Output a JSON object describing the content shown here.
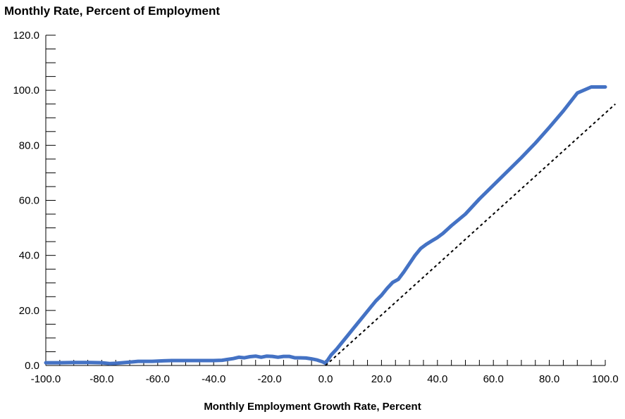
{
  "chart_data": {
    "type": "line",
    "title": "Monthly Rate, Percent of Employment",
    "xlabel": "Monthly Employment Growth Rate, Percent",
    "ylabel": "",
    "xlim": [
      -100,
      100
    ],
    "ylim": [
      0,
      120
    ],
    "x_ticks": [
      "-100.0",
      "-80.0",
      "-60.0",
      "-40.0",
      "-20.0",
      "0.0",
      "20.0",
      "40.0",
      "60.0",
      "80.0",
      "100.0"
    ],
    "y_ticks": [
      "0.0",
      "20.0",
      "40.0",
      "60.0",
      "80.0",
      "100.0",
      "120.0"
    ],
    "grid": false,
    "series": [
      {
        "color": "#4472c4",
        "style": "solid",
        "x": [
          -100,
          -95,
          -90,
          -85,
          -80,
          -77,
          -75,
          -70,
          -67,
          -62,
          -58,
          -55,
          -50,
          -45,
          -40,
          -37,
          -35,
          -33,
          -31,
          -29,
          -27,
          -25,
          -23,
          -21,
          -19,
          -17,
          -15,
          -13,
          -11,
          -9,
          -7,
          -5,
          -3,
          -1,
          0,
          2,
          4,
          6,
          8,
          10,
          12,
          14,
          16,
          18,
          20,
          22,
          24,
          26,
          28,
          30,
          32,
          34,
          36,
          38,
          40,
          42,
          45,
          50,
          55,
          60,
          65,
          70,
          75,
          80,
          85,
          90,
          95,
          100
        ],
        "y": [
          1.0,
          1.0,
          1.1,
          1.1,
          1.0,
          0.7,
          0.8,
          1.2,
          1.5,
          1.5,
          1.7,
          1.8,
          1.8,
          1.8,
          1.8,
          1.9,
          2.2,
          2.5,
          3.0,
          2.8,
          3.2,
          3.4,
          3.0,
          3.4,
          3.3,
          3.0,
          3.3,
          3.3,
          2.8,
          2.8,
          2.7,
          2.4,
          2.0,
          1.3,
          0.8,
          3.8,
          6.0,
          8.5,
          11.0,
          13.5,
          16.0,
          18.5,
          21.0,
          23.5,
          25.5,
          28.0,
          30.2,
          31.3,
          34.0,
          37.0,
          40.0,
          42.5,
          44.0,
          45.3,
          46.5,
          48.0,
          50.8,
          55.0,
          60.5,
          65.5,
          70.5,
          75.5,
          80.8,
          86.5,
          92.5,
          99.0,
          101.2,
          101.2
        ]
      },
      {
        "color": "#000000",
        "style": "dotted",
        "x": [
          0,
          103.6
        ],
        "y": [
          0,
          95
        ]
      }
    ]
  }
}
